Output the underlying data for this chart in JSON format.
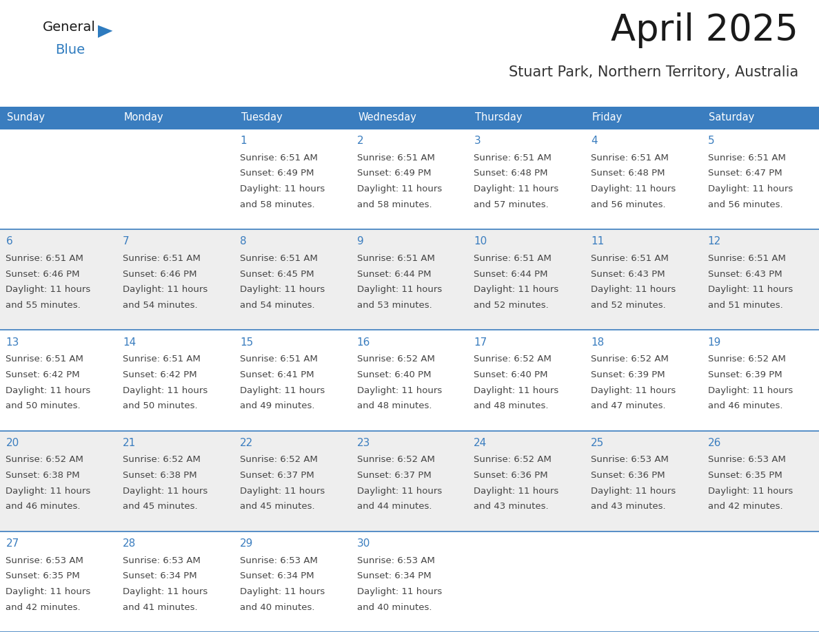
{
  "title": "April 2025",
  "subtitle": "Stuart Park, Northern Territory, Australia",
  "days_of_week": [
    "Sunday",
    "Monday",
    "Tuesday",
    "Wednesday",
    "Thursday",
    "Friday",
    "Saturday"
  ],
  "header_bg": "#3a7dbf",
  "header_text": "#ffffff",
  "cell_bg_white": "#ffffff",
  "cell_bg_gray": "#eeeeee",
  "border_color": "#3a7dbf",
  "day_num_color": "#3a7dbf",
  "text_color": "#444444",
  "title_color": "#1a1a1a",
  "subtitle_color": "#333333",
  "general_color": "#1a1a1a",
  "blue_color": "#2e7bbf",
  "calendar": [
    [
      null,
      null,
      {
        "day": 1,
        "sunrise": "6:51 AM",
        "sunset": "6:49 PM",
        "daylight": "11 hours",
        "daylight2": "and 58 minutes."
      },
      {
        "day": 2,
        "sunrise": "6:51 AM",
        "sunset": "6:49 PM",
        "daylight": "11 hours",
        "daylight2": "and 58 minutes."
      },
      {
        "day": 3,
        "sunrise": "6:51 AM",
        "sunset": "6:48 PM",
        "daylight": "11 hours",
        "daylight2": "and 57 minutes."
      },
      {
        "day": 4,
        "sunrise": "6:51 AM",
        "sunset": "6:48 PM",
        "daylight": "11 hours",
        "daylight2": "and 56 minutes."
      },
      {
        "day": 5,
        "sunrise": "6:51 AM",
        "sunset": "6:47 PM",
        "daylight": "11 hours",
        "daylight2": "and 56 minutes."
      }
    ],
    [
      {
        "day": 6,
        "sunrise": "6:51 AM",
        "sunset": "6:46 PM",
        "daylight": "11 hours",
        "daylight2": "and 55 minutes."
      },
      {
        "day": 7,
        "sunrise": "6:51 AM",
        "sunset": "6:46 PM",
        "daylight": "11 hours",
        "daylight2": "and 54 minutes."
      },
      {
        "day": 8,
        "sunrise": "6:51 AM",
        "sunset": "6:45 PM",
        "daylight": "11 hours",
        "daylight2": "and 54 minutes."
      },
      {
        "day": 9,
        "sunrise": "6:51 AM",
        "sunset": "6:44 PM",
        "daylight": "11 hours",
        "daylight2": "and 53 minutes."
      },
      {
        "day": 10,
        "sunrise": "6:51 AM",
        "sunset": "6:44 PM",
        "daylight": "11 hours",
        "daylight2": "and 52 minutes."
      },
      {
        "day": 11,
        "sunrise": "6:51 AM",
        "sunset": "6:43 PM",
        "daylight": "11 hours",
        "daylight2": "and 52 minutes."
      },
      {
        "day": 12,
        "sunrise": "6:51 AM",
        "sunset": "6:43 PM",
        "daylight": "11 hours",
        "daylight2": "and 51 minutes."
      }
    ],
    [
      {
        "day": 13,
        "sunrise": "6:51 AM",
        "sunset": "6:42 PM",
        "daylight": "11 hours",
        "daylight2": "and 50 minutes."
      },
      {
        "day": 14,
        "sunrise": "6:51 AM",
        "sunset": "6:42 PM",
        "daylight": "11 hours",
        "daylight2": "and 50 minutes."
      },
      {
        "day": 15,
        "sunrise": "6:51 AM",
        "sunset": "6:41 PM",
        "daylight": "11 hours",
        "daylight2": "and 49 minutes."
      },
      {
        "day": 16,
        "sunrise": "6:52 AM",
        "sunset": "6:40 PM",
        "daylight": "11 hours",
        "daylight2": "and 48 minutes."
      },
      {
        "day": 17,
        "sunrise": "6:52 AM",
        "sunset": "6:40 PM",
        "daylight": "11 hours",
        "daylight2": "and 48 minutes."
      },
      {
        "day": 18,
        "sunrise": "6:52 AM",
        "sunset": "6:39 PM",
        "daylight": "11 hours",
        "daylight2": "and 47 minutes."
      },
      {
        "day": 19,
        "sunrise": "6:52 AM",
        "sunset": "6:39 PM",
        "daylight": "11 hours",
        "daylight2": "and 46 minutes."
      }
    ],
    [
      {
        "day": 20,
        "sunrise": "6:52 AM",
        "sunset": "6:38 PM",
        "daylight": "11 hours",
        "daylight2": "and 46 minutes."
      },
      {
        "day": 21,
        "sunrise": "6:52 AM",
        "sunset": "6:38 PM",
        "daylight": "11 hours",
        "daylight2": "and 45 minutes."
      },
      {
        "day": 22,
        "sunrise": "6:52 AM",
        "sunset": "6:37 PM",
        "daylight": "11 hours",
        "daylight2": "and 45 minutes."
      },
      {
        "day": 23,
        "sunrise": "6:52 AM",
        "sunset": "6:37 PM",
        "daylight": "11 hours",
        "daylight2": "and 44 minutes."
      },
      {
        "day": 24,
        "sunrise": "6:52 AM",
        "sunset": "6:36 PM",
        "daylight": "11 hours",
        "daylight2": "and 43 minutes."
      },
      {
        "day": 25,
        "sunrise": "6:53 AM",
        "sunset": "6:36 PM",
        "daylight": "11 hours",
        "daylight2": "and 43 minutes."
      },
      {
        "day": 26,
        "sunrise": "6:53 AM",
        "sunset": "6:35 PM",
        "daylight": "11 hours",
        "daylight2": "and 42 minutes."
      }
    ],
    [
      {
        "day": 27,
        "sunrise": "6:53 AM",
        "sunset": "6:35 PM",
        "daylight": "11 hours",
        "daylight2": "and 42 minutes."
      },
      {
        "day": 28,
        "sunrise": "6:53 AM",
        "sunset": "6:34 PM",
        "daylight": "11 hours",
        "daylight2": "and 41 minutes."
      },
      {
        "day": 29,
        "sunrise": "6:53 AM",
        "sunset": "6:34 PM",
        "daylight": "11 hours",
        "daylight2": "and 40 minutes."
      },
      {
        "day": 30,
        "sunrise": "6:53 AM",
        "sunset": "6:34 PM",
        "daylight": "11 hours",
        "daylight2": "and 40 minutes."
      },
      null,
      null,
      null
    ]
  ]
}
